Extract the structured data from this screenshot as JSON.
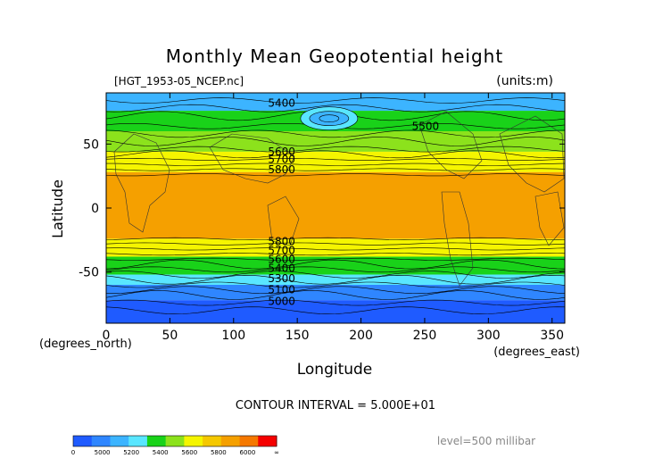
{
  "chart_data": {
    "type": "heatmap",
    "title": "Monthly Mean Geopotential height",
    "file_label": "[HGT_1953-05_NCEP.nc]",
    "units_label": "(units:m)",
    "xlabel": "Longitude",
    "ylabel": "Latitude",
    "x_unit_label": "(degrees_east)",
    "y_unit_label": "(degrees_north)",
    "xlim": [
      0,
      360
    ],
    "ylim": [
      -90,
      90
    ],
    "x_ticks": [
      0,
      50,
      100,
      150,
      200,
      250,
      300,
      350
    ],
    "y_ticks": [
      50,
      0,
      -50
    ],
    "contour_interval_text": "CONTOUR INTERVAL = 5.000E+01",
    "level_text": "level=500 millibar",
    "contour_labels": [
      {
        "text": "5400",
        "lon": 127,
        "lat": 82
      },
      {
        "text": "5500",
        "lon": 240,
        "lat": 64
      },
      {
        "text": "5600",
        "lon": 127,
        "lat": 44
      },
      {
        "text": "5700",
        "lon": 127,
        "lat": 38
      },
      {
        "text": "5800",
        "lon": 127,
        "lat": 30
      },
      {
        "text": "5800",
        "lon": 127,
        "lat": -26
      },
      {
        "text": "5700",
        "lon": 127,
        "lat": -33
      },
      {
        "text": "5600",
        "lon": 127,
        "lat": -40
      },
      {
        "text": "5400",
        "lon": 127,
        "lat": -47
      },
      {
        "text": "5300",
        "lon": 127,
        "lat": -55
      },
      {
        "text": "5100",
        "lon": 127,
        "lat": -64
      },
      {
        "text": "5000",
        "lon": 127,
        "lat": -73
      }
    ],
    "field_bands": [
      {
        "lat_top": 90,
        "lat_bottom": 76,
        "level": 5350
      },
      {
        "lat_top": 76,
        "lat_bottom": 60,
        "level": 5500
      },
      {
        "lat_top": 60,
        "lat_bottom": 44,
        "level": 5650
      },
      {
        "lat_top": 44,
        "lat_bottom": 28,
        "level": 5750
      },
      {
        "lat_top": 28,
        "lat_bottom": -24,
        "level": 5850
      },
      {
        "lat_top": -24,
        "lat_bottom": -38,
        "level": 5750
      },
      {
        "lat_top": -38,
        "lat_bottom": -52,
        "level": 5550
      },
      {
        "lat_top": -52,
        "lat_bottom": -60,
        "level": 5400
      },
      {
        "lat_top": -60,
        "lat_bottom": -72,
        "level": 5150
      },
      {
        "lat_top": -72,
        "lat_bottom": -90,
        "level": 4950
      }
    ],
    "features": [
      {
        "kind": "low",
        "lon": 175,
        "lat": 70,
        "level": 5350
      }
    ],
    "colorbar": {
      "colors": [
        "#1f5bff",
        "#2f86ff",
        "#3cb4ff",
        "#59e6ff",
        "#19d219",
        "#8ce21c",
        "#f5f500",
        "#f5c800",
        "#f5a000",
        "#f57800",
        "#f50000"
      ],
      "tick_labels": [
        "0",
        "5000",
        "5200",
        "5400",
        "5600",
        "5800",
        "6000",
        "∞"
      ]
    }
  }
}
